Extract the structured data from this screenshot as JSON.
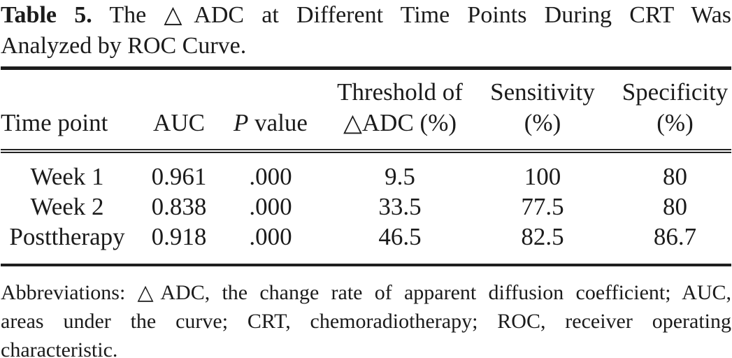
{
  "title": {
    "label": "Table 5.",
    "line1_rest": "The △ADC at Different Time Points During CRT Was",
    "line2": "Analyzed by ROC Curve."
  },
  "table": {
    "columns": [
      {
        "label": "Time point"
      },
      {
        "label": "AUC"
      },
      {
        "label_italic": "P",
        "label": "value"
      },
      {
        "line1": "Threshold of",
        "line2": "△ADC (%)"
      },
      {
        "line1": "Sensitivity",
        "line2": "(%)"
      },
      {
        "line1": "Specificity",
        "line2": "(%)"
      }
    ],
    "rows": [
      {
        "time_point": "Week 1",
        "auc": "0.961",
        "p_value": ".000",
        "threshold": "9.5",
        "sensitivity": "100",
        "specificity": "80"
      },
      {
        "time_point": "Week 2",
        "auc": "0.838",
        "p_value": ".000",
        "threshold": "33.5",
        "sensitivity": "77.5",
        "specificity": "80"
      },
      {
        "time_point": "Posttherapy",
        "auc": "0.918",
        "p_value": ".000",
        "threshold": "46.5",
        "sensitivity": "82.5",
        "specificity": "86.7"
      }
    ]
  },
  "footnote": {
    "line1": "Abbreviations: △ADC, the change rate of apparent diffusion coefficient; AUC,",
    "line2": "areas under the curve; CRT, chemoradiotherapy; ROC, receiver operating",
    "line3": "characteristic."
  },
  "colors": {
    "text": "#1b1b1b",
    "rule": "#1e1e1e",
    "background": "#ffffff"
  }
}
